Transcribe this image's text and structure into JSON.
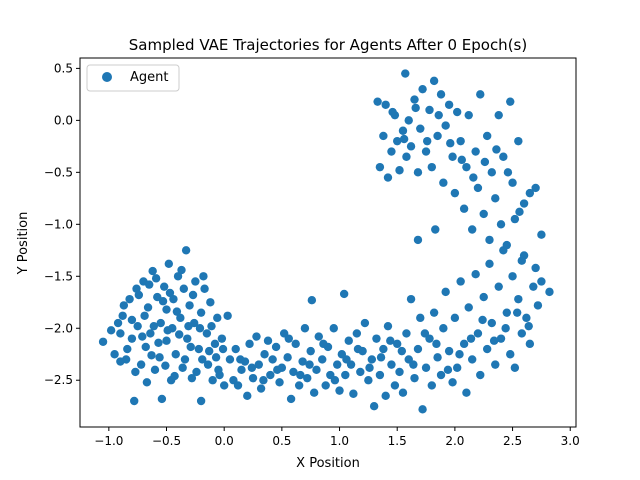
{
  "chart_data": {
    "type": "scatter",
    "title": "Sampled VAE Trajectories for Agents After 0 Epoch(s)",
    "xlabel": "X Position",
    "ylabel": "Y Position",
    "xlim": [
      -1.25,
      3.05
    ],
    "ylim": [
      -2.95,
      0.6
    ],
    "xticks": [
      -1.0,
      -0.5,
      0.0,
      0.5,
      1.0,
      1.5,
      2.0,
      2.5,
      3.0
    ],
    "xtick_labels": [
      "−1.0",
      "−0.5",
      "0.0",
      "0.5",
      "1.0",
      "1.5",
      "2.0",
      "2.5",
      "3.0"
    ],
    "yticks": [
      -2.5,
      -2.0,
      -1.5,
      -1.0,
      -0.5,
      0.0,
      0.5
    ],
    "ytick_labels": [
      "−2.5",
      "−2.0",
      "−1.5",
      "−1.0",
      "−0.5",
      "0.0",
      "0.5"
    ],
    "grid": false,
    "legend_position": "top-left",
    "series": [
      {
        "name": "Agent",
        "color": "#1f77b4",
        "points": [
          [
            -1.05,
            -2.13
          ],
          [
            -0.95,
            -2.25
          ],
          [
            -0.92,
            -1.95
          ],
          [
            -0.9,
            -2.05
          ],
          [
            -0.88,
            -1.88
          ],
          [
            -0.85,
            -2.3
          ],
          [
            -0.82,
            -1.72
          ],
          [
            -0.8,
            -2.1
          ],
          [
            -0.78,
            -2.7
          ],
          [
            -0.76,
            -1.62
          ],
          [
            -0.75,
            -1.98
          ],
          [
            -0.72,
            -2.35
          ],
          [
            -0.7,
            -1.55
          ],
          [
            -0.68,
            -2.18
          ],
          [
            -0.66,
            -1.8
          ],
          [
            -0.64,
            -2.05
          ],
          [
            -0.62,
            -1.45
          ],
          [
            -0.6,
            -2.4
          ],
          [
            -0.58,
            -1.7
          ],
          [
            -0.56,
            -2.28
          ],
          [
            -0.55,
            -1.95
          ],
          [
            -0.54,
            -2.68
          ],
          [
            -0.52,
            -1.6
          ],
          [
            -0.5,
            -2.12
          ],
          [
            -0.5,
            -1.82
          ],
          [
            -0.48,
            -1.38
          ],
          [
            -0.46,
            -2.5
          ],
          [
            -0.45,
            -2.0
          ],
          [
            -0.44,
            -1.72
          ],
          [
            -0.42,
            -2.25
          ],
          [
            -0.4,
            -1.5
          ],
          [
            -0.38,
            -1.9
          ],
          [
            -0.36,
            -2.38
          ],
          [
            -0.35,
            -1.62
          ],
          [
            -0.33,
            -1.25
          ],
          [
            -0.32,
            -2.1
          ],
          [
            -0.3,
            -1.78
          ],
          [
            -0.28,
            -2.48
          ],
          [
            -0.26,
            -1.95
          ],
          [
            -0.25,
            -1.55
          ],
          [
            -0.22,
            -2.2
          ],
          [
            -0.2,
            -1.85
          ],
          [
            -0.2,
            -2.7
          ],
          [
            -0.18,
            -1.5
          ],
          [
            -0.15,
            -2.05
          ],
          [
            -0.14,
            -2.35
          ],
          [
            -0.12,
            -1.75
          ],
          [
            -0.1,
            -2.5
          ],
          [
            -0.08,
            -2.15
          ],
          [
            -0.06,
            -1.9
          ],
          [
            -0.05,
            -2.4
          ],
          [
            -0.02,
            -2.1
          ],
          [
            0.0,
            -2.55
          ],
          [
            0.03,
            -1.88
          ],
          [
            0.05,
            -2.3
          ],
          [
            0.08,
            -2.5
          ],
          [
            -0.98,
            -2.02
          ],
          [
            -0.9,
            -2.32
          ],
          [
            -0.87,
            -1.78
          ],
          [
            -0.84,
            -2.2
          ],
          [
            -0.8,
            -1.92
          ],
          [
            -0.77,
            -2.42
          ],
          [
            -0.74,
            -1.68
          ],
          [
            -0.71,
            -2.08
          ],
          [
            -0.69,
            -1.88
          ],
          [
            -0.67,
            -2.52
          ],
          [
            -0.65,
            -1.58
          ],
          [
            -0.63,
            -2.26
          ],
          [
            -0.61,
            -1.98
          ],
          [
            -0.59,
            -1.52
          ],
          [
            -0.57,
            -2.14
          ],
          [
            -0.53,
            -1.74
          ],
          [
            -0.51,
            -2.36
          ],
          [
            -0.49,
            -2.02
          ],
          [
            -0.47,
            -1.66
          ],
          [
            -0.43,
            -2.46
          ],
          [
            -0.41,
            -1.84
          ],
          [
            -0.39,
            -2.06
          ],
          [
            -0.37,
            -1.44
          ],
          [
            -0.34,
            -2.3
          ],
          [
            -0.31,
            -1.98
          ],
          [
            -0.29,
            -2.18
          ],
          [
            -0.27,
            -1.68
          ],
          [
            -0.24,
            -2.42
          ],
          [
            -0.21,
            -2.0
          ],
          [
            -0.19,
            -2.3
          ],
          [
            -0.17,
            -1.62
          ],
          [
            -0.13,
            -2.22
          ],
          [
            -0.11,
            -1.98
          ],
          [
            -0.07,
            -2.28
          ],
          [
            -0.04,
            -2.45
          ],
          [
            -0.01,
            -2.2
          ],
          [
            0.1,
            -2.2
          ],
          [
            0.12,
            -2.55
          ],
          [
            0.15,
            -2.4
          ],
          [
            0.18,
            -2.32
          ],
          [
            0.2,
            -2.65
          ],
          [
            0.22,
            -2.15
          ],
          [
            0.25,
            -2.48
          ],
          [
            0.28,
            -2.08
          ],
          [
            0.3,
            -2.35
          ],
          [
            0.32,
            -2.58
          ],
          [
            0.35,
            -2.25
          ],
          [
            0.38,
            -2.12
          ],
          [
            0.4,
            -2.45
          ],
          [
            0.42,
            -2.3
          ],
          [
            0.45,
            -2.18
          ],
          [
            0.48,
            -2.52
          ],
          [
            0.5,
            -2.38
          ],
          [
            0.52,
            -2.05
          ],
          [
            0.55,
            -2.28
          ],
          [
            0.58,
            -2.68
          ],
          [
            0.6,
            -2.42
          ],
          [
            0.62,
            -2.15
          ],
          [
            0.65,
            -2.55
          ],
          [
            0.68,
            -2.32
          ],
          [
            0.7,
            -2.0
          ],
          [
            0.72,
            -2.48
          ],
          [
            0.75,
            -2.22
          ],
          [
            0.76,
            -1.73
          ],
          [
            0.78,
            -2.62
          ],
          [
            0.8,
            -2.4
          ],
          [
            0.82,
            -2.08
          ],
          [
            0.85,
            -2.3
          ],
          [
            0.88,
            -2.55
          ],
          [
            0.9,
            -2.18
          ],
          [
            0.92,
            -2.45
          ],
          [
            0.95,
            -2.0
          ],
          [
            0.98,
            -2.35
          ],
          [
            1.0,
            -2.6
          ],
          [
            1.02,
            -2.25
          ],
          [
            1.04,
            -1.67
          ],
          [
            1.05,
            -2.45
          ],
          [
            1.08,
            -2.12
          ],
          [
            1.1,
            -2.35
          ],
          [
            1.12,
            -2.63
          ],
          [
            1.15,
            -2.05
          ],
          [
            1.18,
            -2.42
          ],
          [
            1.2,
            -2.22
          ],
          [
            1.22,
            -1.95
          ],
          [
            1.25,
            -2.5
          ],
          [
            1.28,
            -2.3
          ],
          [
            1.3,
            -2.75
          ],
          [
            1.32,
            -2.1
          ],
          [
            1.35,
            -2.45
          ],
          [
            1.38,
            -2.2
          ],
          [
            1.4,
            -2.65
          ],
          [
            1.42,
            -1.98
          ],
          [
            1.45,
            -2.35
          ],
          [
            1.48,
            -2.55
          ],
          [
            1.5,
            -2.15
          ],
          [
            1.52,
            -2.42
          ],
          [
            1.55,
            -2.62
          ],
          [
            1.58,
            -2.05
          ],
          [
            1.6,
            -2.3
          ],
          [
            1.62,
            -1.72
          ],
          [
            1.65,
            -2.48
          ],
          [
            1.68,
            -2.2
          ],
          [
            1.7,
            -1.9
          ],
          [
            1.72,
            -2.78
          ],
          [
            1.75,
            -2.38
          ],
          [
            1.78,
            -2.1
          ],
          [
            1.8,
            -2.55
          ],
          [
            1.82,
            -1.85
          ],
          [
            1.85,
            -2.28
          ],
          [
            1.88,
            -2.45
          ],
          [
            1.9,
            -2.0
          ],
          [
            1.92,
            -1.65
          ],
          [
            1.95,
            -2.22
          ],
          [
            1.98,
            -2.52
          ],
          [
            2.0,
            -1.9
          ],
          [
            2.02,
            -2.38
          ],
          [
            2.05,
            -1.55
          ],
          [
            2.08,
            -2.15
          ],
          [
            2.1,
            -2.62
          ],
          [
            2.12,
            -1.8
          ],
          [
            2.15,
            -2.3
          ],
          [
            2.18,
            -1.48
          ],
          [
            2.2,
            -2.05
          ],
          [
            2.22,
            -2.45
          ],
          [
            2.25,
            -1.7
          ],
          [
            2.28,
            -2.2
          ],
          [
            2.3,
            -1.38
          ],
          [
            2.32,
            -1.95
          ],
          [
            2.35,
            -2.35
          ],
          [
            2.38,
            -1.6
          ],
          [
            2.4,
            -2.1
          ],
          [
            2.42,
            -1.25
          ],
          [
            2.45,
            -1.85
          ],
          [
            2.48,
            -2.25
          ],
          [
            2.5,
            -1.5
          ],
          [
            2.52,
            -2.38
          ],
          [
            2.55,
            -1.72
          ],
          [
            2.58,
            -2.05
          ],
          [
            2.6,
            -1.3
          ],
          [
            2.62,
            -1.9
          ],
          [
            2.65,
            -2.15
          ],
          [
            2.68,
            -1.6
          ],
          [
            2.7,
            -1.42
          ],
          [
            2.72,
            -1.78
          ],
          [
            2.75,
            -1.55
          ],
          [
            2.82,
            -1.65
          ],
          [
            0.14,
            -2.3
          ],
          [
            0.24,
            -2.38
          ],
          [
            0.34,
            -2.5
          ],
          [
            0.46,
            -2.4
          ],
          [
            0.56,
            -2.1
          ],
          [
            0.66,
            -2.45
          ],
          [
            0.74,
            -2.35
          ],
          [
            0.86,
            -2.15
          ],
          [
            0.96,
            -2.5
          ],
          [
            1.06,
            -2.3
          ],
          [
            1.16,
            -2.2
          ],
          [
            1.26,
            -2.38
          ],
          [
            1.36,
            -2.28
          ],
          [
            1.44,
            -2.12
          ],
          [
            1.54,
            -2.22
          ],
          [
            1.64,
            -2.35
          ],
          [
            1.74,
            -2.05
          ],
          [
            1.84,
            -2.15
          ],
          [
            1.94,
            -2.4
          ],
          [
            2.04,
            -2.25
          ],
          [
            2.14,
            -2.1
          ],
          [
            2.24,
            -1.92
          ],
          [
            2.34,
            -2.12
          ],
          [
            2.44,
            -2.0
          ],
          [
            2.54,
            -1.85
          ],
          [
            2.64,
            -1.98
          ],
          [
            1.33,
            0.18
          ],
          [
            1.35,
            -0.45
          ],
          [
            1.38,
            -0.15
          ],
          [
            1.4,
            0.15
          ],
          [
            1.42,
            -0.55
          ],
          [
            1.45,
            -0.3
          ],
          [
            1.48,
            0.05
          ],
          [
            1.5,
            -0.2
          ],
          [
            1.52,
            -0.48
          ],
          [
            1.55,
            -0.1
          ],
          [
            1.57,
            0.45
          ],
          [
            1.58,
            -0.35
          ],
          [
            1.6,
            0.0
          ],
          [
            1.62,
            -0.25
          ],
          [
            1.65,
            0.2
          ],
          [
            1.68,
            -0.5
          ],
          [
            1.7,
            -0.08
          ],
          [
            1.72,
            0.3
          ],
          [
            1.75,
            -0.3
          ],
          [
            1.78,
            0.1
          ],
          [
            1.8,
            -0.45
          ],
          [
            1.82,
            0.38
          ],
          [
            1.85,
            -0.15
          ],
          [
            1.88,
            0.25
          ],
          [
            1.9,
            -0.6
          ],
          [
            1.92,
            -0.05
          ],
          [
            1.95,
            0.15
          ],
          [
            1.98,
            -0.35
          ],
          [
            2.0,
            -0.7
          ],
          [
            2.02,
            0.08
          ],
          [
            2.05,
            -0.2
          ],
          [
            2.08,
            -0.85
          ],
          [
            2.1,
            -0.45
          ],
          [
            2.12,
            0.05
          ],
          [
            2.15,
            -1.05
          ],
          [
            2.18,
            -0.3
          ],
          [
            2.2,
            -0.65
          ],
          [
            2.22,
            0.25
          ],
          [
            2.25,
            -0.9
          ],
          [
            2.28,
            -0.15
          ],
          [
            2.3,
            -1.15
          ],
          [
            2.32,
            -0.5
          ],
          [
            2.35,
            -0.75
          ],
          [
            2.38,
            0.05
          ],
          [
            2.4,
            -1.0
          ],
          [
            2.42,
            -0.35
          ],
          [
            2.45,
            -1.2
          ],
          [
            2.48,
            0.18
          ],
          [
            2.5,
            -0.6
          ],
          [
            2.52,
            -0.95
          ],
          [
            2.55,
            -0.2
          ],
          [
            2.58,
            -1.35
          ],
          [
            2.6,
            -0.8
          ],
          [
            2.65,
            -0.7
          ],
          [
            2.7,
            -0.65
          ],
          [
            2.75,
            -1.1
          ],
          [
            1.46,
            0.08
          ],
          [
            1.56,
            -0.18
          ],
          [
            1.66,
            0.12
          ],
          [
            1.76,
            -0.2
          ],
          [
            1.86,
            0.05
          ],
          [
            1.96,
            -0.22
          ],
          [
            2.06,
            -0.38
          ],
          [
            2.16,
            -0.55
          ],
          [
            2.26,
            -0.4
          ],
          [
            2.36,
            -0.28
          ],
          [
            2.46,
            -0.5
          ],
          [
            2.56,
            -0.88
          ],
          [
            1.83,
            -1.05
          ],
          [
            1.68,
            -1.15
          ]
        ]
      }
    ]
  }
}
